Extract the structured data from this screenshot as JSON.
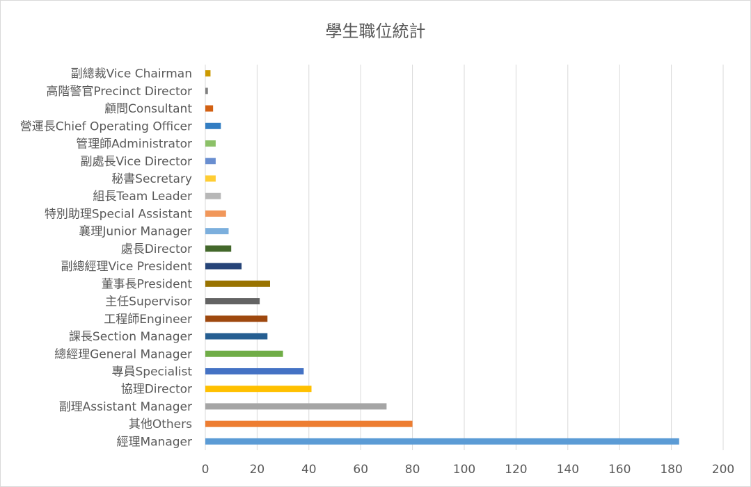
{
  "chart_data": {
    "type": "bar",
    "orientation": "horizontal",
    "title": "學生職位統計",
    "xlabel": "",
    "ylabel": "",
    "xlim": [
      0,
      200
    ],
    "x_ticks": [
      0,
      20,
      40,
      60,
      80,
      100,
      120,
      140,
      160,
      180,
      200
    ],
    "grid": true,
    "legend": "none",
    "categories": [
      "經理Manager",
      "其他Others",
      "副理Assistant Manager",
      "協理Director",
      "專員Specialist",
      "總經理General Manager",
      "課長Section Manager",
      "工程師Engineer",
      "主任Supervisor",
      "董事長President",
      "副總經理Vice President",
      "處長Director",
      "襄理Junior Manager",
      "特別助理Special Assistant",
      "組長Team Leader",
      "秘書Secretary",
      "副處長Vice Director",
      "管理師Administrator",
      "營運長Chief Operating Officer",
      "顧問Consultant",
      "高階警官Precinct Director",
      "副總裁Vice Chairman"
    ],
    "values": [
      183,
      80,
      70,
      41,
      38,
      30,
      24,
      24,
      21,
      25,
      14,
      10,
      9,
      8,
      6,
      4,
      4,
      4,
      6,
      3,
      1,
      2
    ],
    "colors": [
      "#5b9bd5",
      "#ed7d31",
      "#a5a5a5",
      "#ffc000",
      "#4472c4",
      "#70ad47",
      "#255e91",
      "#9e480e",
      "#636363",
      "#997300",
      "#264478",
      "#43682b",
      "#7cafdd",
      "#f1975a",
      "#b7b7b7",
      "#ffcd33",
      "#698ed0",
      "#8cc168",
      "#327dc2",
      "#d26012",
      "#7f7f7f",
      "#cc9a00"
    ]
  }
}
